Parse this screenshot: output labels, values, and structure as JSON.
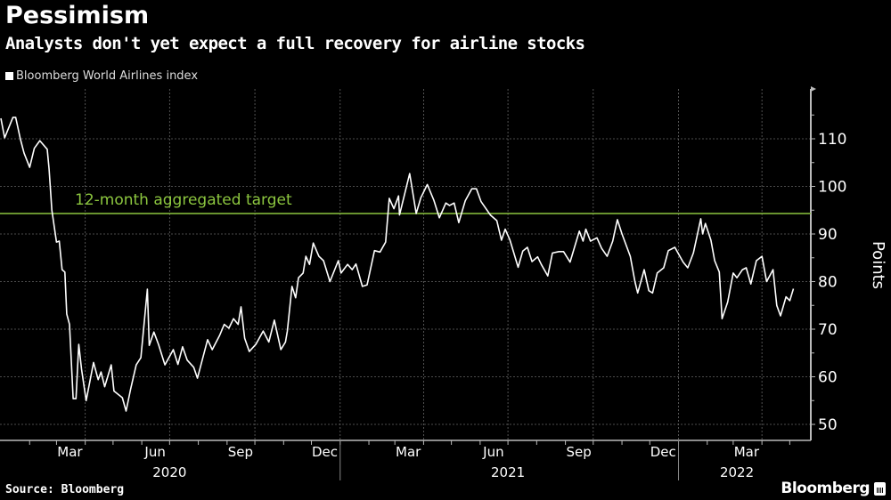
{
  "header": {
    "title": "Pessimism",
    "subtitle": "Analysts don't yet expect a full recovery for airline stocks"
  },
  "footer": {
    "source": "Source: Bloomberg",
    "brand": "Bloomberg"
  },
  "colors": {
    "background": "#000000",
    "series": "#ffffff",
    "target": "#8cc63f",
    "grid": "#666666"
  },
  "chart_data": {
    "type": "line",
    "title": "Pessimism",
    "subtitle": "Analysts don't yet expect a full recovery for airline stocks",
    "ylabel": "Points",
    "xlabel": "",
    "ylim": [
      46.6,
      120.5
    ],
    "xlim": [
      "2020-01-01",
      "2022-05-12"
    ],
    "yticks": [
      50,
      60,
      70,
      80,
      90,
      100,
      110
    ],
    "xticks": [
      {
        "label": "Mar",
        "date": "2020-03-01"
      },
      {
        "label": "Jun",
        "date": "2020-06-01"
      },
      {
        "label": "Sep",
        "date": "2020-09-01"
      },
      {
        "label": "Dec",
        "date": "2020-12-01"
      },
      {
        "label": "Mar",
        "date": "2021-03-01"
      },
      {
        "label": "Jun",
        "date": "2021-06-01"
      },
      {
        "label": "Sep",
        "date": "2021-09-01"
      },
      {
        "label": "Dec",
        "date": "2021-12-01"
      },
      {
        "label": "Mar",
        "date": "2022-03-01"
      }
    ],
    "years": [
      {
        "label": "2020",
        "date": "2020-07-01"
      },
      {
        "label": "2021",
        "date": "2021-07-01"
      },
      {
        "label": "2022",
        "date": "2022-03-05"
      }
    ],
    "grid": true,
    "legend": {
      "placement": "top-left",
      "entries": [
        "Bloomberg World Airlines index"
      ]
    },
    "annotations": [
      {
        "label": "12-month aggregated target",
        "y": 94.3
      }
    ],
    "series": [
      {
        "name": "Bloomberg World Airlines index",
        "points": [
          [
            "2020-01-01",
            114.3
          ],
          [
            "2020-01-05",
            110.2
          ],
          [
            "2020-01-14",
            114.5
          ],
          [
            "2020-01-17",
            114.5
          ],
          [
            "2020-01-22",
            110
          ],
          [
            "2020-01-26",
            107
          ],
          [
            "2020-02-01",
            104
          ],
          [
            "2020-02-06",
            108
          ],
          [
            "2020-02-12",
            109.6
          ],
          [
            "2020-02-20",
            107.8
          ],
          [
            "2020-02-22",
            103.6
          ],
          [
            "2020-02-25",
            95
          ],
          [
            "2020-03-01",
            88.3
          ],
          [
            "2020-03-04",
            88.5
          ],
          [
            "2020-03-07",
            82.5
          ],
          [
            "2020-03-10",
            82
          ],
          [
            "2020-03-12",
            73.2
          ],
          [
            "2020-03-15",
            71
          ],
          [
            "2020-03-19",
            55.4
          ],
          [
            "2020-03-22",
            55.4
          ],
          [
            "2020-03-25",
            66.8
          ],
          [
            "2020-03-28",
            61.6
          ],
          [
            "2020-04-02",
            55
          ],
          [
            "2020-04-10",
            63
          ],
          [
            "2020-04-15",
            59.4
          ],
          [
            "2020-04-18",
            61
          ],
          [
            "2020-04-22",
            57.9
          ],
          [
            "2020-04-29",
            62.5
          ],
          [
            "2020-05-02",
            57
          ],
          [
            "2020-05-11",
            55.6
          ],
          [
            "2020-05-15",
            52.8
          ],
          [
            "2020-05-20",
            57.5
          ],
          [
            "2020-05-26",
            62.5
          ],
          [
            "2020-05-31",
            64
          ],
          [
            "2020-06-07",
            78.4
          ],
          [
            "2020-06-09",
            66.6
          ],
          [
            "2020-06-14",
            69.4
          ],
          [
            "2020-06-19",
            66.8
          ],
          [
            "2020-06-26",
            62.5
          ],
          [
            "2020-07-05",
            65.7
          ],
          [
            "2020-07-10",
            62.6
          ],
          [
            "2020-07-15",
            66.3
          ],
          [
            "2020-07-20",
            63.5
          ],
          [
            "2020-07-27",
            62
          ],
          [
            "2020-07-31",
            59.7
          ],
          [
            "2020-08-11",
            67.8
          ],
          [
            "2020-08-16",
            65.7
          ],
          [
            "2020-08-24",
            68.7
          ],
          [
            "2020-08-29",
            71
          ],
          [
            "2020-09-03",
            70.2
          ],
          [
            "2020-09-08",
            72.2
          ],
          [
            "2020-09-13",
            71
          ],
          [
            "2020-09-16",
            74.7
          ],
          [
            "2020-09-20",
            68.1
          ],
          [
            "2020-09-25",
            65.3
          ],
          [
            "2020-10-02",
            66.8
          ],
          [
            "2020-10-10",
            69.6
          ],
          [
            "2020-10-16",
            67.3
          ],
          [
            "2020-10-22",
            71.9
          ],
          [
            "2020-10-29",
            65.7
          ],
          [
            "2020-11-03",
            67.3
          ],
          [
            "2020-11-05",
            69.6
          ],
          [
            "2020-11-10",
            79
          ],
          [
            "2020-11-14",
            76.6
          ],
          [
            "2020-11-17",
            80.8
          ],
          [
            "2020-11-22",
            81.8
          ],
          [
            "2020-11-25",
            85.3
          ],
          [
            "2020-11-29",
            83.6
          ],
          [
            "2020-12-03",
            88.1
          ],
          [
            "2020-12-09",
            85.3
          ],
          [
            "2020-12-14",
            84.4
          ],
          [
            "2020-12-21",
            80
          ],
          [
            "2020-12-30",
            84.4
          ],
          [
            "2021-01-02",
            81.8
          ],
          [
            "2021-01-09",
            83.6
          ],
          [
            "2021-01-14",
            82.5
          ],
          [
            "2021-01-18",
            83.7
          ],
          [
            "2021-01-25",
            79
          ],
          [
            "2021-01-30",
            79.3
          ],
          [
            "2021-02-07",
            86.5
          ],
          [
            "2021-02-13",
            86.2
          ],
          [
            "2021-02-19",
            88.3
          ],
          [
            "2021-02-23",
            97.5
          ],
          [
            "2021-02-28",
            95.3
          ],
          [
            "2021-03-05",
            98
          ],
          [
            "2021-03-06",
            94
          ],
          [
            "2021-03-17",
            102.7
          ],
          [
            "2021-03-24",
            94.3
          ],
          [
            "2021-03-29",
            97.6
          ],
          [
            "2021-04-05",
            100.4
          ],
          [
            "2021-04-12",
            97.1
          ],
          [
            "2021-04-18",
            93.4
          ],
          [
            "2021-04-25",
            96.5
          ],
          [
            "2021-04-29",
            96
          ],
          [
            "2021-05-04",
            96.5
          ],
          [
            "2021-05-09",
            92.4
          ],
          [
            "2021-05-16",
            97
          ],
          [
            "2021-05-23",
            99.5
          ],
          [
            "2021-05-28",
            99.5
          ],
          [
            "2021-06-02",
            96.8
          ],
          [
            "2021-06-12",
            94
          ],
          [
            "2021-06-19",
            92.8
          ],
          [
            "2021-06-24",
            88.7
          ],
          [
            "2021-06-28",
            91
          ],
          [
            "2021-07-03",
            88.8
          ],
          [
            "2021-07-12",
            83
          ],
          [
            "2021-07-17",
            86.4
          ],
          [
            "2021-07-22",
            87.2
          ],
          [
            "2021-07-27",
            84.2
          ],
          [
            "2021-08-02",
            85.2
          ],
          [
            "2021-08-06",
            83.6
          ],
          [
            "2021-08-13",
            81.2
          ],
          [
            "2021-08-18",
            86
          ],
          [
            "2021-08-25",
            86.3
          ],
          [
            "2021-08-30",
            86.3
          ],
          [
            "2021-09-06",
            84.1
          ],
          [
            "2021-09-16",
            90.6
          ],
          [
            "2021-09-20",
            88.5
          ],
          [
            "2021-09-23",
            91
          ],
          [
            "2021-09-28",
            88.5
          ],
          [
            "2021-10-05",
            89.2
          ],
          [
            "2021-10-10",
            87
          ],
          [
            "2021-10-16",
            85.3
          ],
          [
            "2021-10-22",
            88.5
          ],
          [
            "2021-10-27",
            93
          ],
          [
            "2021-11-01",
            90
          ],
          [
            "2021-11-10",
            85.3
          ],
          [
            "2021-11-15",
            80
          ],
          [
            "2021-11-18",
            77.6
          ],
          [
            "2021-11-25",
            82.5
          ],
          [
            "2021-11-30",
            78.1
          ],
          [
            "2021-12-04",
            77.6
          ],
          [
            "2021-12-09",
            81.8
          ],
          [
            "2021-12-16",
            82.9
          ],
          [
            "2021-12-21",
            86.5
          ],
          [
            "2021-12-28",
            87.2
          ],
          [
            "2022-01-06",
            84.1
          ],
          [
            "2022-01-11",
            82.9
          ],
          [
            "2022-01-17",
            86
          ],
          [
            "2022-01-25",
            93.2
          ],
          [
            "2022-01-27",
            90
          ],
          [
            "2022-01-30",
            92.2
          ],
          [
            "2022-02-05",
            88.7
          ],
          [
            "2022-02-09",
            84.4
          ],
          [
            "2022-02-14",
            82
          ],
          [
            "2022-02-17",
            72.2
          ],
          [
            "2022-02-23",
            75.7
          ],
          [
            "2022-03-01",
            81.8
          ],
          [
            "2022-03-05",
            80.8
          ],
          [
            "2022-03-11",
            82.5
          ],
          [
            "2022-03-15",
            82.9
          ],
          [
            "2022-03-20",
            79.5
          ],
          [
            "2022-03-26",
            84.4
          ],
          [
            "2022-04-01",
            85.3
          ],
          [
            "2022-04-06",
            80
          ],
          [
            "2022-04-13",
            82.5
          ],
          [
            "2022-04-17",
            75
          ],
          [
            "2022-04-21",
            72.8
          ],
          [
            "2022-04-27",
            76.8
          ],
          [
            "2022-05-01",
            76
          ],
          [
            "2022-05-05",
            78.5
          ]
        ]
      }
    ]
  }
}
